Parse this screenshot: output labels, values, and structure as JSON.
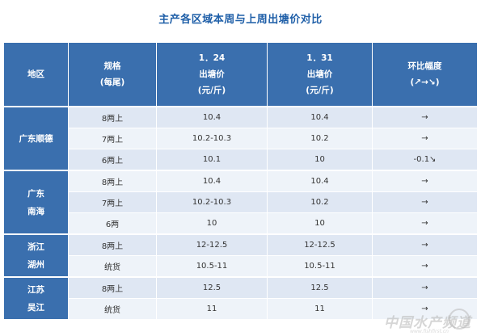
{
  "title": "主产各区域本周与上周出塘价对比",
  "header": {
    "region": "地区",
    "spec": [
      "规格",
      "(每尾)"
    ],
    "week1": [
      "1．24",
      "出塘价",
      "(元/斤)"
    ],
    "week2": [
      "1．31",
      "出塘价",
      "(元/斤)"
    ],
    "change": [
      "环比幅度",
      "(↗→↘)"
    ]
  },
  "groups": [
    {
      "region": [
        "广东顺德"
      ],
      "rows": [
        {
          "spec": "8两上",
          "p1": "10.4",
          "p2": "10.4",
          "change": "→"
        },
        {
          "spec": "7两上",
          "p1": "10.2-10.3",
          "p2": "10.2",
          "change": "→"
        },
        {
          "spec": "6两上",
          "p1": "10.1",
          "p2": "10",
          "change": "-0.1↘"
        }
      ]
    },
    {
      "region": [
        "广东",
        "南海"
      ],
      "rows": [
        {
          "spec": "8两上",
          "p1": "10.4",
          "p2": "10.4",
          "change": "→"
        },
        {
          "spec": "7两上",
          "p1": "10.2-10.3",
          "p2": "10.2",
          "change": "→"
        },
        {
          "spec": "6两",
          "p1": "10",
          "p2": "10",
          "change": "→"
        }
      ]
    },
    {
      "region": [
        "浙江",
        "湖州"
      ],
      "rows": [
        {
          "spec": "8两上",
          "p1": "12-12.5",
          "p2": "12-12.5",
          "change": "→"
        },
        {
          "spec": "统货",
          "p1": "10.5-11",
          "p2": "10.5-11",
          "change": "→"
        }
      ]
    },
    {
      "region": [
        "江苏",
        "吴江"
      ],
      "rows": [
        {
          "spec": "8两上",
          "p1": "12.5",
          "p2": "12.5",
          "change": "→"
        },
        {
          "spec": "统货",
          "p1": "11",
          "p2": "11",
          "change": "→"
        }
      ]
    }
  ],
  "watermark": {
    "main": "中国水产频道",
    "sub": "www.fishfirst.cn"
  }
}
